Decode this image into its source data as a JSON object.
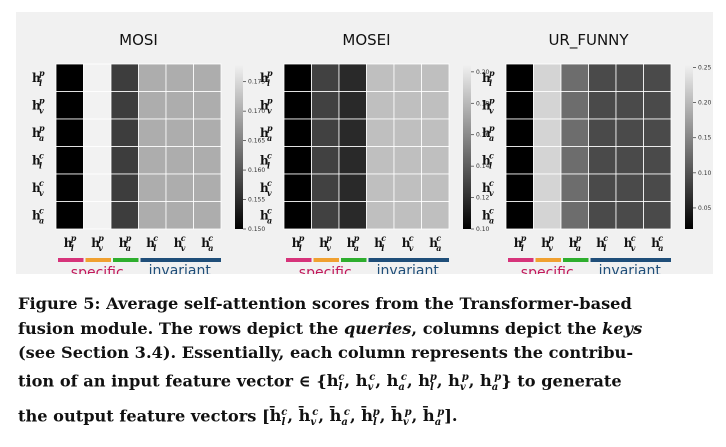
{
  "figure": {
    "panels": [
      {
        "title": "MOSI",
        "ticks": [
          "0.175",
          "0.170",
          "0.165",
          "0.160",
          "0.155",
          "0.150"
        ],
        "vmin": 0.15,
        "vmax": 0.178,
        "column_scores": [
          0.15,
          0.178,
          0.157,
          0.17,
          0.17,
          0.17
        ]
      },
      {
        "title": "MOSEI",
        "ticks": [
          "0.20",
          "0.18",
          "0.16",
          "0.14",
          "0.12",
          "0.10"
        ],
        "vmin": 0.1,
        "vmax": 0.205,
        "column_scores": [
          0.1,
          0.128,
          0.118,
          0.183,
          0.183,
          0.183
        ]
      },
      {
        "title": "UR_FUNNY",
        "ticks": [
          "0.25",
          "0.20",
          "0.15",
          "0.10",
          "0.05"
        ],
        "vmin": 0.02,
        "vmax": 0.255,
        "column_scores": [
          0.02,
          0.226,
          0.126,
          0.092,
          0.092,
          0.092
        ]
      }
    ],
    "row_labels": [
      {
        "base": "h",
        "sup": "p",
        "sub": "l"
      },
      {
        "base": "h",
        "sup": "p",
        "sub": "v"
      },
      {
        "base": "h",
        "sup": "p",
        "sub": "a"
      },
      {
        "base": "h",
        "sup": "c",
        "sub": "l"
      },
      {
        "base": "h",
        "sup": "c",
        "sub": "v"
      },
      {
        "base": "h",
        "sup": "c",
        "sub": "a"
      }
    ],
    "col_labels": [
      {
        "base": "h",
        "sup": "p",
        "sub": "l"
      },
      {
        "base": "h",
        "sup": "p",
        "sub": "v"
      },
      {
        "base": "h",
        "sup": "p",
        "sub": "a"
      },
      {
        "base": "h",
        "sup": "c",
        "sub": "l"
      },
      {
        "base": "h",
        "sup": "c",
        "sub": "v"
      },
      {
        "base": "h",
        "sup": "c",
        "sub": "a"
      }
    ],
    "groups": {
      "specific": "specific",
      "invariant": "invariant"
    },
    "colors": {
      "pink": "#d6337a",
      "orange": "#f0a030",
      "green": "#2eae2e",
      "navy": "#1f4e79",
      "specific_text": "#c2185b",
      "invariant_text": "#1f4e79"
    }
  },
  "caption": {
    "line1": "Figure 5: Average self-attention scores from the Transformer-based",
    "line2": "fusion module. The rows depict the",
    "queries": "queries",
    "line2b": ", columns depict the",
    "keys": "keys",
    "line3": "(see Section 3.4). Essentially, each column represents the contribu-",
    "line4": "tion of an input feature vector ∈ {",
    "line4b": "} to generate",
    "line5": "the output feature vectors ["
  }
}
